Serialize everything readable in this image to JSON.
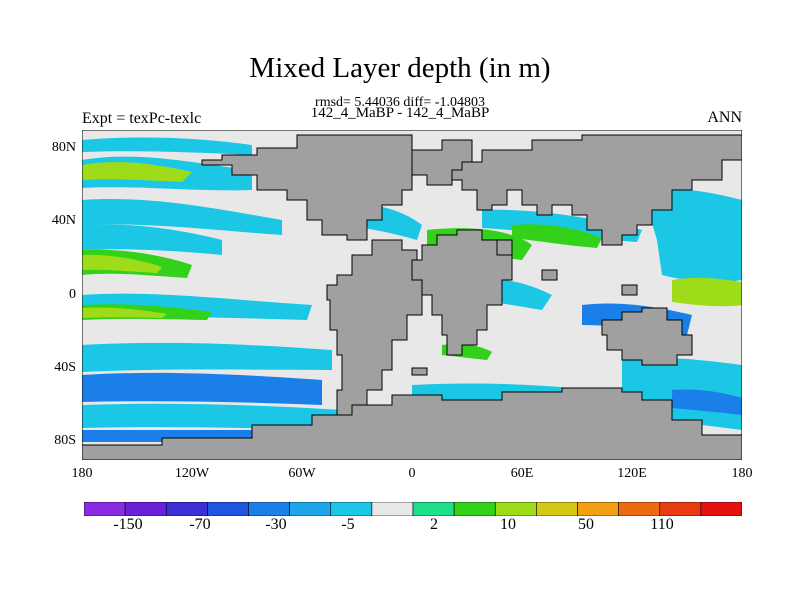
{
  "title": "Mixed Layer depth (in m)",
  "stats": "rmsd= 5.44036 diff= -1.04803",
  "subtitle": "142_4_MaBP - 142_4_MaBP",
  "left_label": "Expt = texPc-texlc",
  "right_label": "ANN",
  "lat_labels": [
    "80N",
    "40N",
    "0",
    "40S",
    "80S"
  ],
  "lon_labels": [
    "180",
    "120W",
    "60W",
    "0",
    "60E",
    "120E",
    "180"
  ],
  "colorbar": {
    "colors": [
      "#8a2be2",
      "#6a1fd8",
      "#3b2fd6",
      "#1f55e0",
      "#1a7fe8",
      "#1fa6ea",
      "#1cc7e6",
      "#e8e8e8",
      "#1fe08a",
      "#33d11a",
      "#9edc1a",
      "#d4c814",
      "#f0a010",
      "#ee6a10",
      "#e83c10",
      "#e61010"
    ],
    "labels": [
      "-150",
      "-70",
      "-30",
      "-5",
      "2",
      "10",
      "50",
      "110"
    ]
  },
  "map_colors": {
    "land": "#a0a0a0",
    "ocean_near_zero": "#e8e8e8",
    "light_blue": "#1cc7e6",
    "mid_blue": "#1a7fe8",
    "deep_blue": "#1f55e0",
    "green": "#33d11a",
    "aqua_green": "#1fe08a",
    "yellow_green": "#9edc1a"
  }
}
